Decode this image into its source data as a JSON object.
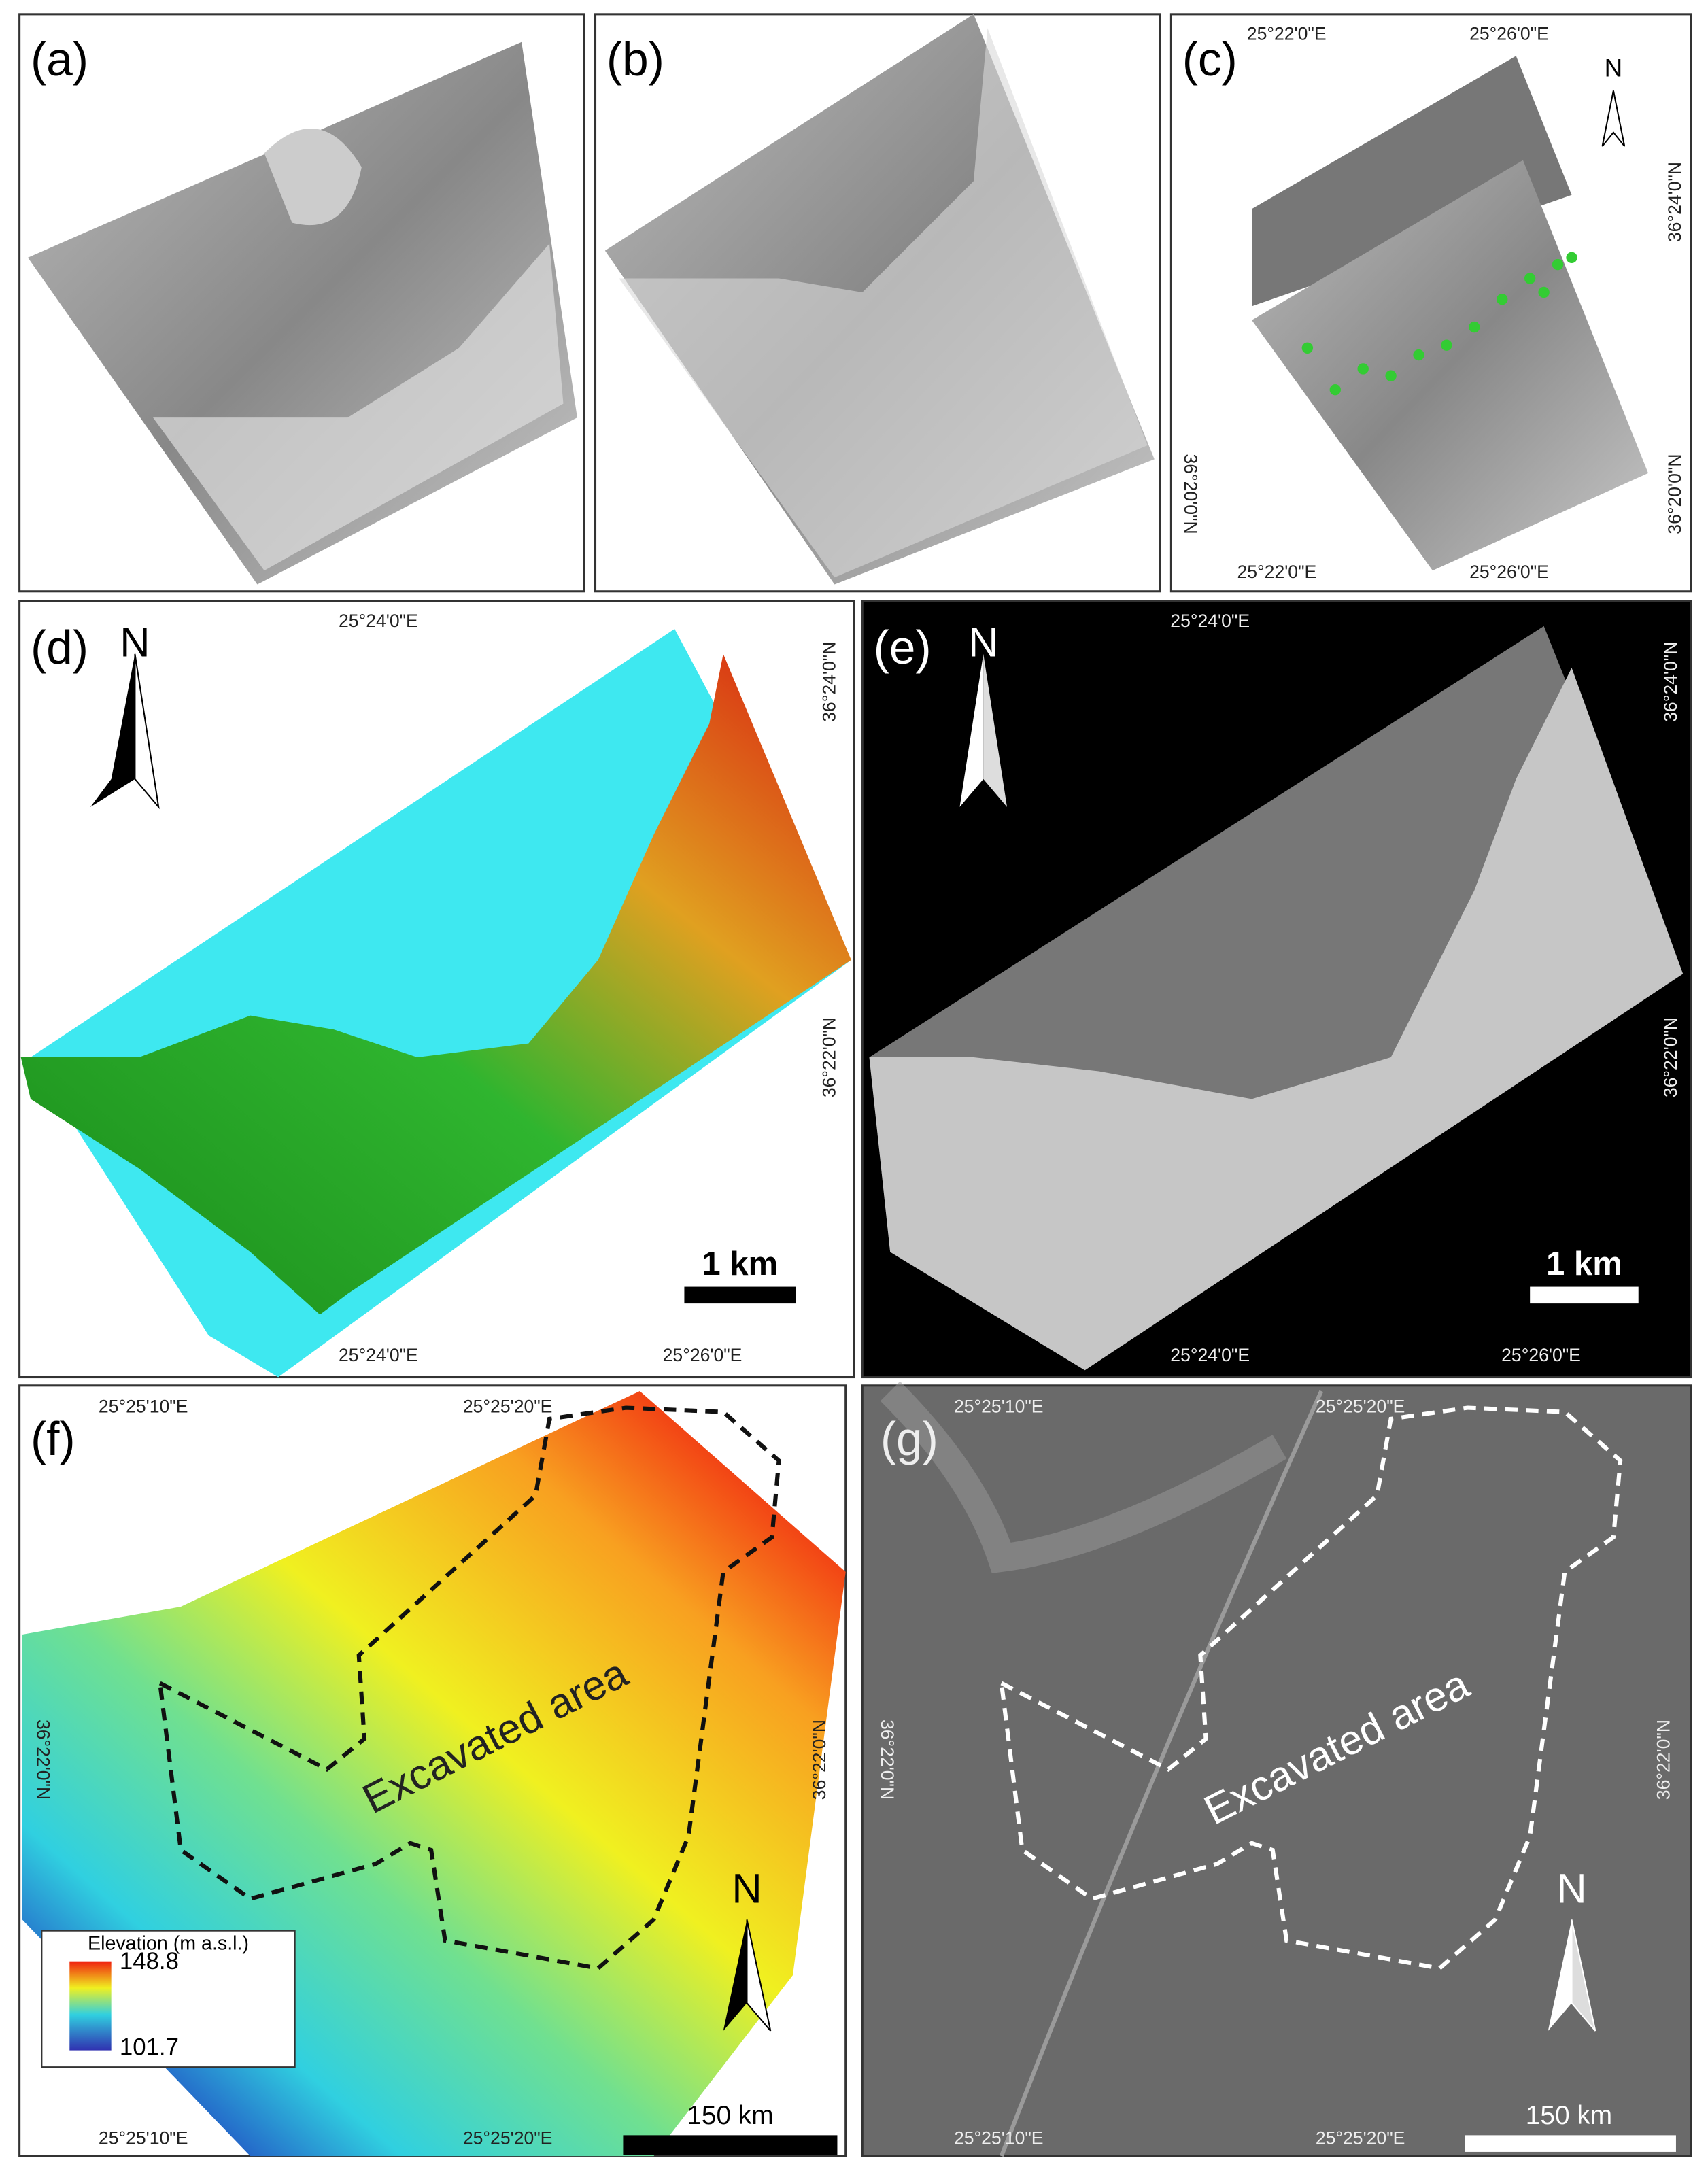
{
  "panels": [
    {
      "label": "(a)"
    },
    {
      "label": "(b)"
    },
    {
      "label": "(c)",
      "north": "N",
      "top_labels": [
        "25°22'0\"E",
        "25°26'0\"E"
      ],
      "bottom_labels": [
        "25°22'0\"E",
        "25°26'0\"E"
      ],
      "left_labels": [
        "36°20'0\"N"
      ],
      "right_labels": [
        "36°24'0\"N",
        "36°20'0\"N"
      ]
    },
    {
      "label": "(d)",
      "north": "N",
      "top_labels": [
        "25°24'0\"E"
      ],
      "bottom_labels": [
        "25°24'0\"E",
        "25°26'0\"E"
      ],
      "right_labels": [
        "36°24'0\"N",
        "36°22'0\"N"
      ],
      "scale_bar": "1 km"
    },
    {
      "label": "(e)",
      "north": "N",
      "top_labels": [
        "25°24'0\"E"
      ],
      "bottom_labels": [
        "25°24'0\"E",
        "25°26'0\"E"
      ],
      "right_labels": [
        "36°24'0\"N",
        "36°22'0\"N"
      ],
      "scale_bar": "1 km"
    },
    {
      "label": "(f)",
      "north": "N",
      "top_labels": [
        "25°25'10\"E",
        "25°25'20\"E"
      ],
      "bottom_labels": [
        "25°25'10\"E",
        "25°25'20\"E"
      ],
      "left_labels": [
        "36°22'0\"N"
      ],
      "right_labels": [
        "36°22'0\"N"
      ],
      "annotation": "Excavated area",
      "scale_bar": "150 km",
      "legend": {
        "title": "Elevation (m a.s.l.)",
        "max": "148.8",
        "min": "101.7"
      }
    },
    {
      "label": "(g)",
      "north": "N",
      "top_labels": [
        "25°25'10\"E",
        "25°25'20\"E"
      ],
      "bottom_labels": [
        "25°25'10\"E",
        "25°25'20\"E"
      ],
      "left_labels": [
        "36°22'0\"N"
      ],
      "right_labels": [
        "36°22'0\"N"
      ],
      "annotation": "Excavated area",
      "scale_bar": "150 km"
    }
  ]
}
